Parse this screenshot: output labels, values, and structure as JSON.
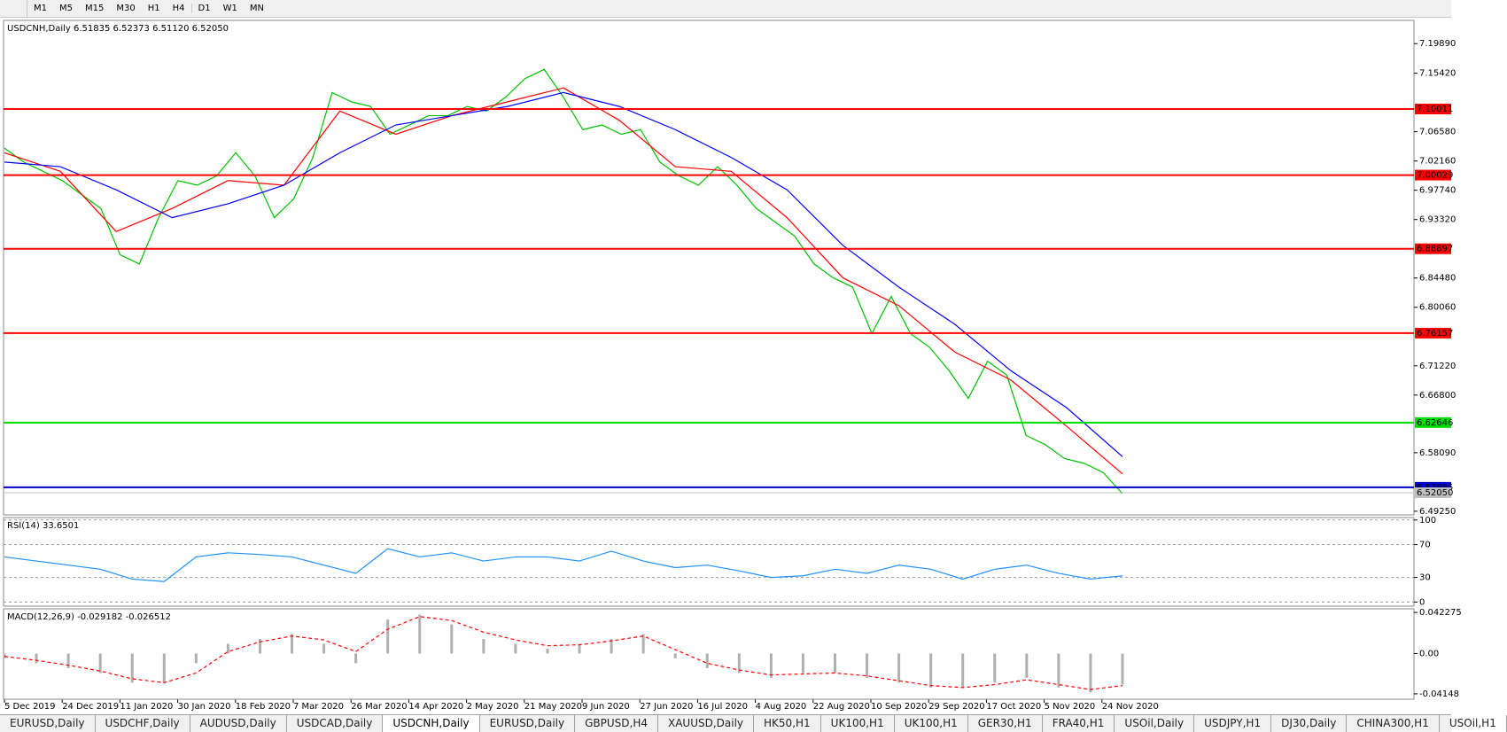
{
  "toolbar": {
    "timeframes": [
      "M1",
      "M5",
      "M15",
      "M30",
      "H1",
      "H4",
      "D1",
      "W1",
      "MN"
    ]
  },
  "chart_data": [
    {
      "type": "line",
      "title": "USDCNH,Daily  6.51835 6.52373 6.51120 6.52050",
      "ylim": [
        6.487,
        7.234
      ],
      "yticks": [
        {
          "value": 7.1989,
          "label": "7.19890"
        },
        {
          "value": 7.1542,
          "label": "7.15420"
        },
        {
          "value": 7.0658,
          "label": "7.06580"
        },
        {
          "value": 7.0216,
          "label": "7.02160"
        },
        {
          "value": 6.9774,
          "label": "6.97740"
        },
        {
          "value": 6.9332,
          "label": "6.93320"
        },
        {
          "value": 6.8448,
          "label": "6.84480"
        },
        {
          "value": 6.8006,
          "label": "6.80060"
        },
        {
          "value": 6.7122,
          "label": "6.71220"
        },
        {
          "value": 6.668,
          "label": "6.66800"
        },
        {
          "value": 6.5809,
          "label": "6.58090"
        },
        {
          "value": 6.4925,
          "label": "6.49250"
        }
      ],
      "levels": [
        {
          "value": 7.10011,
          "color": "#ff0000"
        },
        {
          "value": 7.00029,
          "color": "#ff0000"
        },
        {
          "value": 6.88897,
          "color": "#ff0000"
        },
        {
          "value": 6.76157,
          "color": "#ff0000"
        },
        {
          "value": 6.62646,
          "color": "#00dd00"
        },
        {
          "value": 6.52865,
          "color": "#0000cc"
        },
        {
          "value": {
            "value": 6.5205,
            "label": "6.52050"
          },
          "color": "#c0c0c0"
        }
      ],
      "x_labels": [
        "5 Dec 2019",
        "24 Dec 2019",
        "11 Jan 2020",
        "30 Jan 2020",
        "18 Feb 2020",
        "7 Mar 2020",
        "26 Mar 2020",
        "14 Apr 2020",
        "2 May 2020",
        "21 May 2020",
        "9 Jun 2020",
        "27 Jun 2020",
        "16 Jul 2020",
        "4 Aug 2020",
        "22 Aug 2020",
        "10 Sep 2020",
        "29 Sep 2020",
        "17 Oct 2020",
        "5 Nov 2020",
        "24 Nov 2020"
      ],
      "series": [
        {
          "color": "#00c000",
          "style": "line",
          "values": [
            7.041,
            7.02,
            7.006,
            6.992,
            6.971,
            6.95,
            6.88,
            6.866,
            6.936,
            6.992,
            6.985,
            6.999,
            7.034,
            6.999,
            6.936,
            6.964,
            7.027,
            7.125,
            7.111,
            7.104,
            7.062,
            7.076,
            7.09,
            7.09,
            7.104,
            7.097,
            7.118,
            7.146,
            7.16,
            7.118,
            7.069,
            7.076,
            7.062,
            7.069,
            7.02,
            6.999,
            6.985,
            7.013,
            6.985,
            6.95,
            6.929,
            6.908,
            6.866,
            6.845,
            6.831,
            6.761,
            6.817,
            6.761,
            6.74,
            6.705,
            6.663,
            6.719,
            6.698,
            6.607,
            6.593,
            6.572,
            6.565,
            6.551,
            6.519
          ]
        },
        {
          "color": "#ff0000",
          "style": "line",
          "values": [
            7.034,
            7.006,
            6.915,
            6.95,
            6.992,
            6.985,
            7.097,
            7.062,
            7.09,
            7.111,
            7.132,
            7.083,
            7.013,
            7.006,
            6.936,
            6.845,
            6.803,
            6.733,
            6.691,
            6.621,
            6.549
          ]
        },
        {
          "color": "#0000ff",
          "style": "line",
          "values": [
            7.02,
            7.013,
            6.978,
            6.936,
            6.957,
            6.985,
            7.034,
            7.076,
            7.09,
            7.104,
            7.125,
            7.104,
            7.069,
            7.027,
            6.978,
            6.894,
            6.831,
            6.775,
            6.705,
            6.649,
            6.575
          ]
        }
      ]
    },
    {
      "type": "line",
      "title": "RSI(14) 33.6501",
      "ylim": [
        -5,
        103
      ],
      "yticks": [
        0,
        30,
        70,
        100
      ],
      "grid": "dotted",
      "series": [
        {
          "color": "#1e90ff",
          "style": "line",
          "values": [
            55,
            50,
            45,
            40,
            28,
            25,
            55,
            60,
            58,
            55,
            45,
            35,
            65,
            55,
            60,
            50,
            55,
            55,
            50,
            62,
            50,
            42,
            45,
            38,
            30,
            32,
            40,
            35,
            45,
            40,
            28,
            40,
            45,
            35,
            28,
            32
          ]
        }
      ]
    },
    {
      "type": "line",
      "title": "MACD(12,26,9) -0.029182 -0.026512",
      "ylim": [
        -0.047,
        0.046
      ],
      "yticks": [
        0.042275,
        {
          "value": 0,
          "label": "0.00"
        },
        -0.04148
      ],
      "series": [
        {
          "color": "#b0b0b0",
          "style": "histogram",
          "values": [
            -0.005,
            -0.01,
            -0.015,
            -0.02,
            -0.03,
            -0.03,
            -0.01,
            0.01,
            0.015,
            0.02,
            0.01,
            -0.01,
            0.035,
            0.04,
            0.03,
            0.015,
            0.01,
            0.005,
            0.01,
            0.015,
            0.02,
            -0.005,
            -0.015,
            -0.02,
            -0.025,
            -0.02,
            -0.02,
            -0.025,
            -0.03,
            -0.035,
            -0.035,
            -0.03,
            -0.025,
            -0.035,
            -0.04,
            -0.032
          ]
        },
        {
          "color": "#ff0000",
          "style": "dashed",
          "values": [
            -0.003,
            -0.007,
            -0.012,
            -0.018,
            -0.026,
            -0.03,
            -0.02,
            0.002,
            0.012,
            0.018,
            0.014,
            0.002,
            0.025,
            0.038,
            0.034,
            0.022,
            0.014,
            0.008,
            0.009,
            0.013,
            0.018,
            0.004,
            -0.01,
            -0.017,
            -0.022,
            -0.021,
            -0.02,
            -0.023,
            -0.028,
            -0.033,
            -0.035,
            -0.032,
            -0.027,
            -0.032,
            -0.037,
            -0.033
          ]
        }
      ]
    }
  ],
  "tabs": [
    "EURUSD,Daily",
    "USDCHF,Daily",
    "AUDUSD,Daily",
    "USDCAD,Daily",
    "USDCNH,Daily",
    "EURUSD,Daily",
    "GBPUSD,H4",
    "XAUUSD,Daily",
    "HK50,H1",
    "UK100,H1",
    "UK100,H1",
    "GER30,H1",
    "FRA40,H1",
    "USOil,Daily",
    "USDJPY,H1",
    "DJ30,Daily",
    "CHINA300,H1",
    "USOil,H1"
  ]
}
